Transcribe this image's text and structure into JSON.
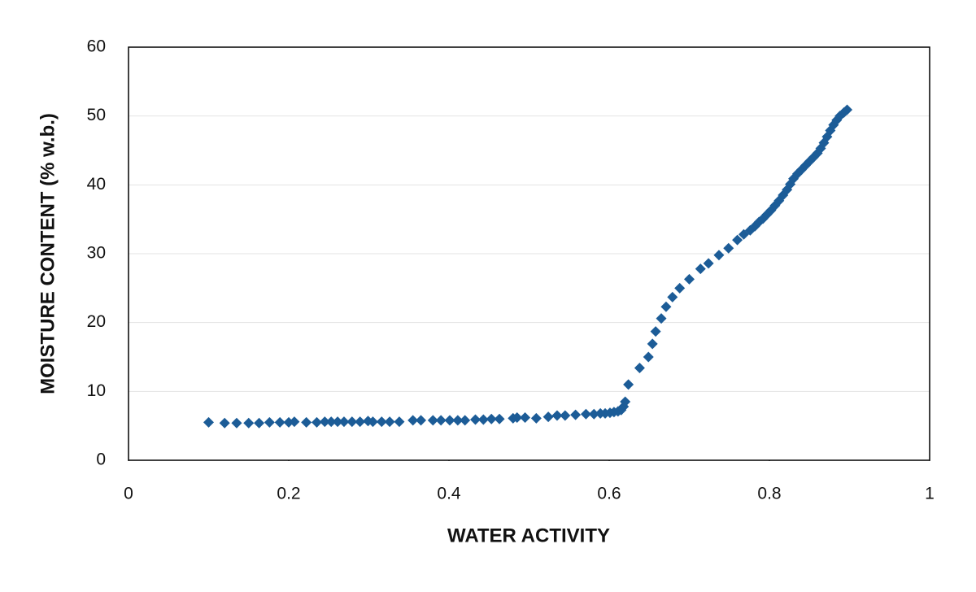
{
  "chart_data": {
    "type": "scatter",
    "x_label": "WATER ACTIVITY",
    "y_label": "MOISTURE CONTENT (% w.b.)",
    "xlim": [
      0,
      1
    ],
    "xticks": [
      0,
      0.2,
      0.4,
      0.6,
      0.8,
      1
    ],
    "ylim": [
      0,
      60
    ],
    "yticks": [
      0,
      10,
      20,
      30,
      40,
      50,
      60
    ],
    "grid": true,
    "color": "#1c5c97",
    "x": [
      0.1,
      0.12,
      0.135,
      0.15,
      0.163,
      0.176,
      0.189,
      0.2,
      0.207,
      0.222,
      0.235,
      0.245,
      0.253,
      0.261,
      0.269,
      0.279,
      0.289,
      0.299,
      0.305,
      0.316,
      0.326,
      0.338,
      0.355,
      0.365,
      0.38,
      0.39,
      0.401,
      0.411,
      0.42,
      0.433,
      0.443,
      0.453,
      0.463,
      0.48,
      0.485,
      0.495,
      0.509,
      0.524,
      0.535,
      0.545,
      0.558,
      0.571,
      0.581,
      0.589,
      0.595,
      0.601,
      0.606,
      0.611,
      0.615,
      0.618,
      0.62,
      0.624,
      0.638,
      0.649,
      0.654,
      0.658,
      0.665,
      0.671,
      0.679,
      0.688,
      0.7,
      0.714,
      0.724,
      0.737,
      0.749,
      0.76,
      0.768,
      0.776,
      0.782,
      0.787,
      0.792,
      0.797,
      0.802,
      0.807,
      0.812,
      0.817,
      0.822,
      0.826,
      0.83,
      0.835,
      0.84,
      0.845,
      0.85,
      0.855,
      0.86,
      0.864,
      0.868,
      0.872,
      0.876,
      0.88,
      0.884,
      0.888,
      0.893,
      0.897
    ],
    "values": [
      5.5,
      5.4,
      5.4,
      5.4,
      5.4,
      5.5,
      5.5,
      5.5,
      5.6,
      5.5,
      5.5,
      5.6,
      5.6,
      5.6,
      5.6,
      5.6,
      5.6,
      5.7,
      5.6,
      5.6,
      5.6,
      5.6,
      5.8,
      5.8,
      5.8,
      5.8,
      5.8,
      5.8,
      5.8,
      5.9,
      5.9,
      6.0,
      6.0,
      6.1,
      6.2,
      6.2,
      6.1,
      6.3,
      6.5,
      6.5,
      6.6,
      6.7,
      6.7,
      6.8,
      6.8,
      6.9,
      7.0,
      7.1,
      7.3,
      7.8,
      8.5,
      11.0,
      13.4,
      15.0,
      16.9,
      18.7,
      20.6,
      22.3,
      23.7,
      25.0,
      26.3,
      27.8,
      28.6,
      29.8,
      30.8,
      32.0,
      32.8,
      33.4,
      34.0,
      34.6,
      35.1,
      35.7,
      36.3,
      37.0,
      37.7,
      38.5,
      39.3,
      40.1,
      40.9,
      41.6,
      42.2,
      42.8,
      43.4,
      44.0,
      44.6,
      45.3,
      46.1,
      47.0,
      47.9,
      48.7,
      49.4,
      50.0,
      50.5,
      50.9
    ]
  }
}
